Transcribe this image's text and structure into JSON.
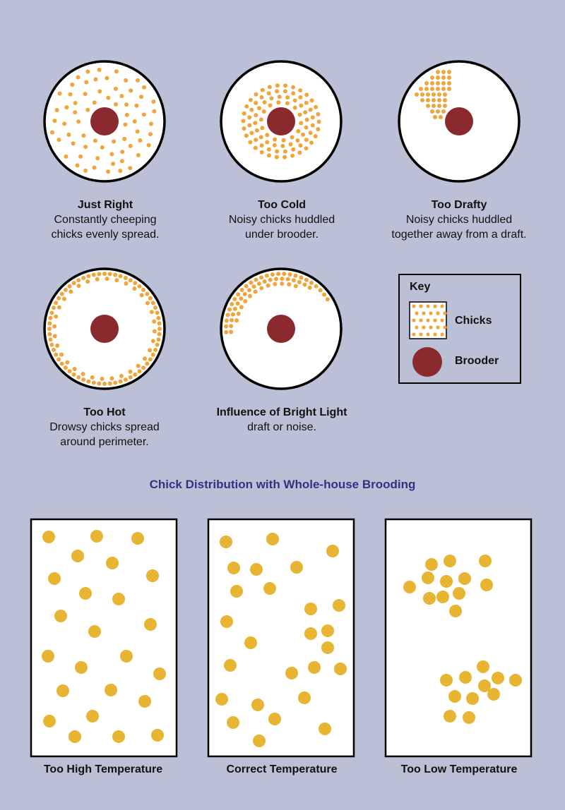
{
  "colors": {
    "background": "#bcc0d6",
    "chick": "#f0a43a",
    "chick_large": "#e8b532",
    "brooder": "#8b2a2e",
    "title": "#2e3480"
  },
  "circles": [
    {
      "id": "just-right",
      "title": "Just Right",
      "description": "Constantly cheeping\nchicks evenly spread.",
      "pattern": "even"
    },
    {
      "id": "too-cold",
      "title": "Too Cold",
      "description": "Noisy chicks huddled\nunder brooder.",
      "pattern": "ring-around-brooder"
    },
    {
      "id": "too-drafty",
      "title": "Too Drafty",
      "description": "Noisy chicks huddled\ntogether away from a draft.",
      "pattern": "cluster-top-left"
    },
    {
      "id": "too-hot",
      "title": "Too Hot",
      "description": "Drowsy chicks spread\naround perimeter.",
      "pattern": "perimeter"
    },
    {
      "id": "bright-light",
      "title": "Influence of Bright Light",
      "description": "draft or noise.",
      "pattern": "arc-top-left"
    }
  ],
  "key": {
    "title": "Key",
    "chicks_label": "Chicks",
    "brooder_label": "Brooder"
  },
  "section_title": "Chick Distribution with Whole-house Brooding",
  "boxes": [
    {
      "id": "too-high",
      "label": "Too High Temperature",
      "pattern": "spread"
    },
    {
      "id": "correct",
      "label": "Correct Temperature",
      "pattern": "even"
    },
    {
      "id": "too-low",
      "label": "Too Low Temperature",
      "pattern": "two-clusters"
    }
  ]
}
